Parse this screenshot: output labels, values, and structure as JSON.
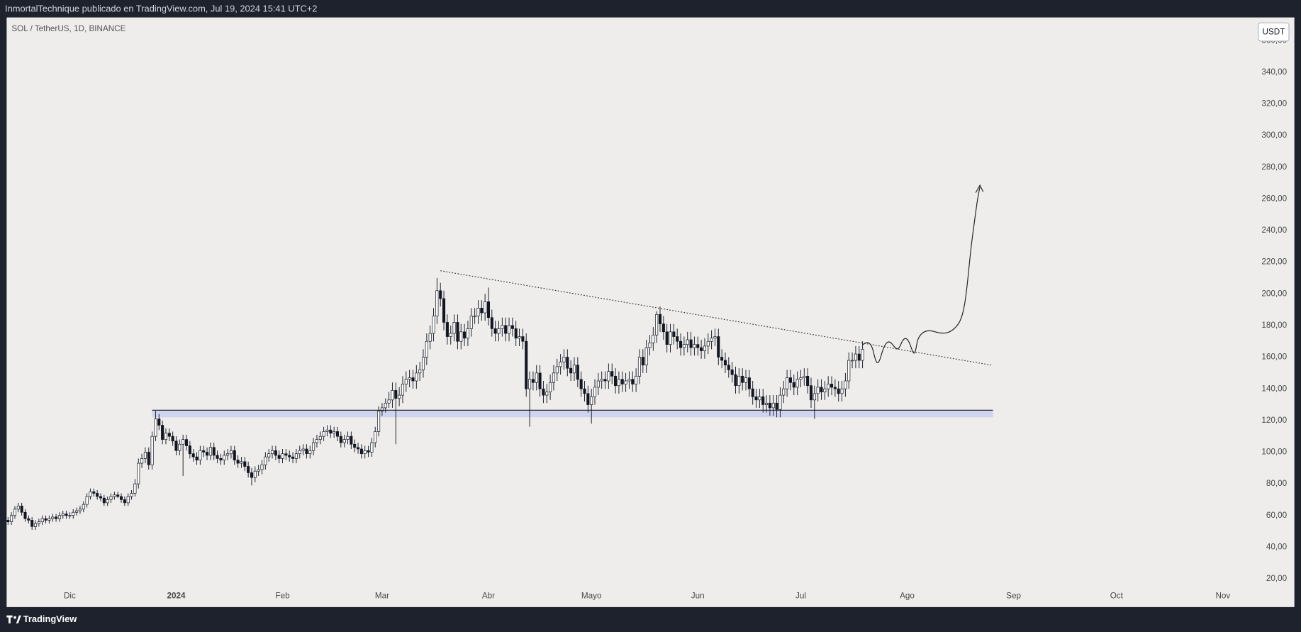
{
  "header": {
    "publisher": "InmortalTechnique publicado en TradingView.com, Jul 19, 2024 15:41 UTC+2",
    "symbol": "SOL / TetherUS, 1D, BINANCE",
    "currency": "USDT"
  },
  "footer": {
    "brand": "TradingView"
  },
  "chart_data": {
    "type": "candlestick",
    "up_color": "#ffffff",
    "down_color": "#131722",
    "wick_color": "#131722",
    "grid": false,
    "xlim": [
      -18.4,
      342.8
    ],
    "ylim": [
      14.2,
      374.6
    ],
    "xticks": [
      {
        "value": 0,
        "label": "Dic"
      },
      {
        "value": 31,
        "label": "2024"
      },
      {
        "value": 62,
        "label": "Feb"
      },
      {
        "value": 91,
        "label": "Mar"
      },
      {
        "value": 122,
        "label": "Abr"
      },
      {
        "value": 152,
        "label": "Mayo"
      },
      {
        "value": 183,
        "label": "Jun"
      },
      {
        "value": 213,
        "label": "Jul"
      },
      {
        "value": 244,
        "label": "Ago"
      },
      {
        "value": 275,
        "label": "Sep"
      },
      {
        "value": 305,
        "label": "Oct"
      },
      {
        "value": 336,
        "label": "Nov"
      }
    ],
    "yticks": [
      {
        "value": 20,
        "label": "20,00"
      },
      {
        "value": 40,
        "label": "40,00"
      },
      {
        "value": 60,
        "label": "60,00"
      },
      {
        "value": 80,
        "label": "80,00"
      },
      {
        "value": 100,
        "label": "100,00"
      },
      {
        "value": 120,
        "label": "120,00"
      },
      {
        "value": 140,
        "label": "140,00"
      },
      {
        "value": 160,
        "label": "160,00"
      },
      {
        "value": 180,
        "label": "180,00"
      },
      {
        "value": 200,
        "label": "200,00"
      },
      {
        "value": 220,
        "label": "220,00"
      },
      {
        "value": 240,
        "label": "240,00"
      },
      {
        "value": 260,
        "label": "260,00"
      },
      {
        "value": 280,
        "label": "280,00"
      },
      {
        "value": 300,
        "label": "300,00"
      },
      {
        "value": 320,
        "label": "320,00"
      },
      {
        "value": 340,
        "label": "340,00"
      },
      {
        "value": 360,
        "label": "360,00"
      }
    ],
    "x": [
      -18,
      -17,
      -16,
      -15,
      -14,
      -13,
      -12,
      -11,
      -10,
      -9,
      -8,
      -7,
      -6,
      -5,
      -4,
      -3,
      -2,
      -1,
      0,
      1,
      2,
      3,
      4,
      5,
      6,
      7,
      8,
      9,
      10,
      11,
      12,
      13,
      14,
      15,
      16,
      17,
      18,
      19,
      20,
      21,
      22,
      23,
      24,
      25,
      26,
      27,
      28,
      29,
      30,
      31,
      32,
      33,
      34,
      35,
      36,
      37,
      38,
      39,
      40,
      41,
      42,
      43,
      44,
      45,
      46,
      47,
      48,
      49,
      50,
      51,
      52,
      53,
      54,
      55,
      56,
      57,
      58,
      59,
      60,
      61,
      62,
      63,
      64,
      65,
      66,
      67,
      68,
      69,
      70,
      71,
      72,
      73,
      74,
      75,
      76,
      77,
      78,
      79,
      80,
      81,
      82,
      83,
      84,
      85,
      86,
      87,
      88,
      89,
      90,
      91,
      92,
      93,
      94,
      95,
      96,
      97,
      98,
      99,
      100,
      101,
      102,
      103,
      104,
      105,
      106,
      107,
      108,
      109,
      110,
      111,
      112,
      113,
      114,
      115,
      116,
      117,
      118,
      119,
      120,
      121,
      122,
      123,
      124,
      125,
      126,
      127,
      128,
      129,
      130,
      131,
      132,
      133,
      134,
      135,
      136,
      137,
      138,
      139,
      140,
      141,
      142,
      143,
      144,
      145,
      146,
      147,
      148,
      149,
      150,
      151,
      152,
      153,
      154,
      155,
      156,
      157,
      158,
      159,
      160,
      161,
      162,
      163,
      164,
      165,
      166,
      167,
      168,
      169,
      170,
      171,
      172,
      173,
      174,
      175,
      176,
      177,
      178,
      179,
      180,
      181,
      182,
      183,
      184,
      185,
      186,
      187,
      188,
      189,
      190,
      191,
      192,
      193,
      194,
      195,
      196,
      197,
      198,
      199,
      200,
      201,
      202,
      203,
      204,
      205,
      206,
      207,
      208,
      209,
      210,
      211,
      212,
      213,
      214,
      215,
      216,
      217,
      218,
      219,
      220,
      221,
      222,
      223,
      224,
      225,
      226,
      227,
      228,
      229,
      230,
      231
    ],
    "open": [
      57,
      56,
      60,
      64,
      66,
      62,
      58,
      57,
      53,
      55,
      56,
      58,
      57,
      58,
      59,
      58,
      60,
      61,
      60,
      60,
      62,
      63,
      64,
      67,
      72,
      75,
      74,
      72,
      71,
      68,
      70,
      72,
      73,
      72,
      70,
      68,
      72,
      74,
      80,
      93,
      96,
      100,
      92,
      110,
      121,
      117,
      108,
      112,
      110,
      107,
      101,
      105,
      108,
      104,
      99,
      97,
      95,
      101,
      100,
      98,
      103,
      98,
      96,
      95,
      98,
      99,
      101,
      95,
      93,
      94,
      91,
      87,
      84,
      88,
      89,
      92,
      97,
      99,
      101,
      98,
      96,
      99,
      98,
      97,
      96,
      99,
      101,
      102,
      99,
      101,
      106,
      108,
      110,
      113,
      114,
      112,
      113,
      110,
      106,
      108,
      110,
      105,
      103,
      102,
      99,
      101,
      100,
      106,
      113,
      126,
      128,
      131,
      133,
      139,
      134,
      136,
      143,
      146,
      147,
      145,
      150,
      152,
      160,
      170,
      175,
      186,
      202,
      197,
      182,
      173,
      175,
      182,
      170,
      176,
      172,
      178,
      186,
      186,
      191,
      188,
      195,
      185,
      178,
      175,
      178,
      180,
      175,
      180,
      178,
      172,
      173,
      170,
      140,
      146,
      144,
      150,
      140,
      136,
      138,
      144,
      150,
      154,
      157,
      160,
      153,
      150,
      155,
      146,
      140,
      137,
      130,
      135,
      141,
      145,
      146,
      145,
      151,
      148,
      142,
      146,
      143,
      145,
      146,
      143,
      148,
      160,
      155,
      166,
      169,
      174,
      187,
      181,
      176,
      168,
      176,
      173,
      170,
      166,
      168,
      171,
      166,
      168,
      166,
      164,
      167,
      170,
      172,
      173,
      160,
      158,
      155,
      152,
      149,
      142,
      148,
      144,
      147,
      140,
      135,
      133,
      135,
      130,
      131,
      128,
      131,
      127,
      136,
      140,
      147,
      144,
      141,
      146,
      147,
      148,
      142,
      133,
      137,
      141,
      138,
      140,
      143,
      141,
      140,
      137,
      140,
      145,
      158,
      158,
      162,
      158
    ],
    "high": [
      59,
      62,
      66,
      68,
      68,
      64,
      60,
      59,
      57,
      58,
      60,
      60,
      60,
      61,
      61,
      62,
      63,
      63,
      62,
      64,
      65,
      66,
      69,
      74,
      77,
      77,
      76,
      74,
      73,
      72,
      74,
      75,
      75,
      74,
      72,
      74,
      76,
      83,
      96,
      99,
      103,
      103,
      113,
      126,
      124,
      120,
      115,
      115,
      113,
      110,
      108,
      111,
      111,
      107,
      102,
      100,
      104,
      104,
      103,
      106,
      106,
      101,
      99,
      101,
      102,
      104,
      104,
      98,
      97,
      97,
      94,
      90,
      91,
      92,
      95,
      100,
      102,
      104,
      104,
      101,
      102,
      102,
      101,
      100,
      102,
      104,
      105,
      105,
      104,
      109,
      111,
      113,
      116,
      117,
      117,
      116,
      116,
      113,
      111,
      113,
      113,
      108,
      106,
      105,
      104,
      104,
      109,
      116,
      129,
      131,
      134,
      138,
      144,
      144,
      141,
      148,
      151,
      152,
      152,
      155,
      157,
      165,
      175,
      180,
      191,
      210,
      207,
      202,
      187,
      180,
      187,
      187,
      181,
      181,
      183,
      191,
      191,
      196,
      196,
      200,
      204,
      190,
      183,
      183,
      185,
      185,
      185,
      185,
      183,
      178,
      178,
      175,
      151,
      151,
      155,
      155,
      145,
      143,
      149,
      155,
      159,
      162,
      165,
      165,
      158,
      160,
      160,
      151,
      145,
      142,
      140,
      146,
      150,
      151,
      151,
      156,
      156,
      153,
      151,
      151,
      150,
      151,
      151,
      153,
      165,
      165,
      171,
      174,
      179,
      189,
      192,
      186,
      181,
      181,
      181,
      178,
      175,
      173,
      176,
      176,
      173,
      173,
      171,
      172,
      175,
      177,
      178,
      178,
      165,
      163,
      160,
      157,
      154,
      153,
      153,
      152,
      152,
      145,
      140,
      140,
      140,
      136,
      136,
      136,
      136,
      141,
      145,
      152,
      152,
      149,
      151,
      152,
      153,
      153,
      147,
      142,
      146,
      146,
      145,
      148,
      148,
      146,
      145,
      145,
      150,
      163,
      163,
      167,
      167,
      170
    ],
    "low": [
      54,
      54,
      58,
      62,
      60,
      56,
      55,
      51,
      51,
      53,
      54,
      55,
      55,
      56,
      56,
      56,
      58,
      58,
      58,
      58,
      60,
      61,
      62,
      65,
      70,
      72,
      70,
      69,
      66,
      66,
      68,
      70,
      71,
      68,
      66,
      66,
      70,
      72,
      77,
      90,
      93,
      89,
      89,
      107,
      114,
      105,
      105,
      107,
      104,
      98,
      98,
      85,
      101,
      96,
      94,
      92,
      92,
      97,
      95,
      95,
      95,
      93,
      92,
      92,
      95,
      96,
      92,
      90,
      90,
      88,
      84,
      79,
      81,
      85,
      86,
      89,
      94,
      96,
      95,
      93,
      93,
      95,
      94,
      93,
      93,
      96,
      98,
      96,
      96,
      98,
      103,
      105,
      107,
      110,
      109,
      109,
      107,
      103,
      103,
      105,
      102,
      100,
      99,
      96,
      96,
      97,
      97,
      103,
      110,
      123,
      125,
      128,
      128,
      105,
      129,
      131,
      138,
      141,
      140,
      140,
      145,
      147,
      155,
      165,
      170,
      181,
      192,
      177,
      168,
      168,
      170,
      165,
      165,
      167,
      167,
      173,
      181,
      181,
      183,
      183,
      180,
      173,
      170,
      170,
      173,
      170,
      170,
      173,
      167,
      167,
      165,
      135,
      116,
      139,
      139,
      135,
      131,
      131,
      133,
      139,
      145,
      149,
      152,
      148,
      145,
      145,
      141,
      135,
      132,
      125,
      118,
      130,
      136,
      140,
      140,
      140,
      143,
      137,
      137,
      138,
      138,
      140,
      138,
      138,
      143,
      150,
      150,
      161,
      164,
      169,
      176,
      171,
      163,
      163,
      168,
      165,
      161,
      161,
      163,
      161,
      161,
      161,
      159,
      159,
      162,
      165,
      167,
      155,
      153,
      150,
      147,
      144,
      137,
      137,
      139,
      139,
      135,
      130,
      128,
      128,
      125,
      125,
      123,
      123,
      122,
      122,
      131,
      135,
      139,
      136,
      136,
      141,
      142,
      137,
      128,
      121,
      132,
      133,
      133,
      135,
      136,
      135,
      132,
      132,
      135,
      140,
      153,
      153,
      153,
      153
    ],
    "close": [
      56,
      60,
      64,
      66,
      62,
      58,
      57,
      53,
      55,
      56,
      58,
      57,
      58,
      59,
      58,
      60,
      61,
      60,
      60,
      62,
      63,
      64,
      67,
      72,
      75,
      74,
      72,
      71,
      68,
      70,
      72,
      73,
      72,
      70,
      68,
      72,
      74,
      80,
      93,
      96,
      100,
      92,
      110,
      121,
      117,
      108,
      112,
      110,
      107,
      101,
      105,
      108,
      104,
      99,
      97,
      95,
      101,
      100,
      98,
      103,
      98,
      96,
      95,
      98,
      99,
      101,
      95,
      93,
      94,
      91,
      87,
      84,
      88,
      89,
      92,
      97,
      99,
      101,
      98,
      96,
      99,
      98,
      97,
      96,
      99,
      101,
      102,
      99,
      101,
      106,
      108,
      110,
      113,
      114,
      112,
      113,
      110,
      106,
      108,
      110,
      105,
      103,
      102,
      99,
      101,
      100,
      106,
      113,
      126,
      128,
      131,
      133,
      139,
      134,
      136,
      143,
      146,
      147,
      145,
      150,
      152,
      160,
      170,
      175,
      186,
      202,
      197,
      182,
      173,
      175,
      182,
      170,
      176,
      172,
      178,
      186,
      186,
      191,
      188,
      195,
      185,
      178,
      175,
      178,
      180,
      175,
      180,
      178,
      172,
      173,
      170,
      140,
      146,
      144,
      150,
      140,
      136,
      138,
      144,
      150,
      154,
      157,
      160,
      153,
      150,
      155,
      146,
      140,
      137,
      130,
      135,
      141,
      145,
      146,
      145,
      151,
      148,
      142,
      146,
      143,
      145,
      146,
      143,
      148,
      160,
      155,
      166,
      169,
      174,
      187,
      181,
      176,
      168,
      176,
      173,
      170,
      166,
      168,
      171,
      166,
      168,
      166,
      164,
      167,
      170,
      172,
      173,
      160,
      158,
      155,
      152,
      149,
      142,
      148,
      144,
      147,
      140,
      135,
      133,
      135,
      130,
      131,
      128,
      131,
      127,
      136,
      140,
      147,
      144,
      141,
      146,
      147,
      148,
      142,
      133,
      137,
      141,
      138,
      140,
      143,
      141,
      140,
      137,
      140,
      145,
      158,
      158,
      162,
      158,
      165
    ],
    "support": {
      "x": [
        24,
        269
      ],
      "y": 126.5,
      "zone_low": 122,
      "color": "#131722",
      "zone_color": "#c9cdf0"
    },
    "trendline": {
      "x": [
        108,
        269
      ],
      "y": [
        214.6,
        154.8
      ],
      "color": "#333333"
    }
  }
}
